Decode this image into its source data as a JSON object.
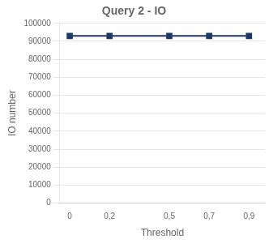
{
  "chart_data": {
    "type": "line",
    "title": "Query 2 - IO",
    "x_label": "Threshold",
    "y_label": "IO number",
    "x": [
      0,
      0.2,
      0.5,
      0.7,
      0.9
    ],
    "values": [
      93000,
      93000,
      93000,
      93000,
      93000
    ],
    "color": "#1f3864",
    "marker": "square",
    "xlim": [
      -0.05,
      0.98
    ],
    "xticks": [
      0,
      {
        "value": 0.2,
        "label": "0,2"
      },
      {
        "value": 0.5,
        "label": "0,5"
      },
      {
        "value": 0.7,
        "label": "0,7"
      },
      {
        "value": 0.9,
        "label": "0,9"
      }
    ],
    "ylim": [
      0,
      100000
    ],
    "yticks": [
      0,
      10000,
      20000,
      30000,
      40000,
      50000,
      60000,
      70000,
      80000,
      90000,
      100000
    ],
    "grid": "y"
  }
}
